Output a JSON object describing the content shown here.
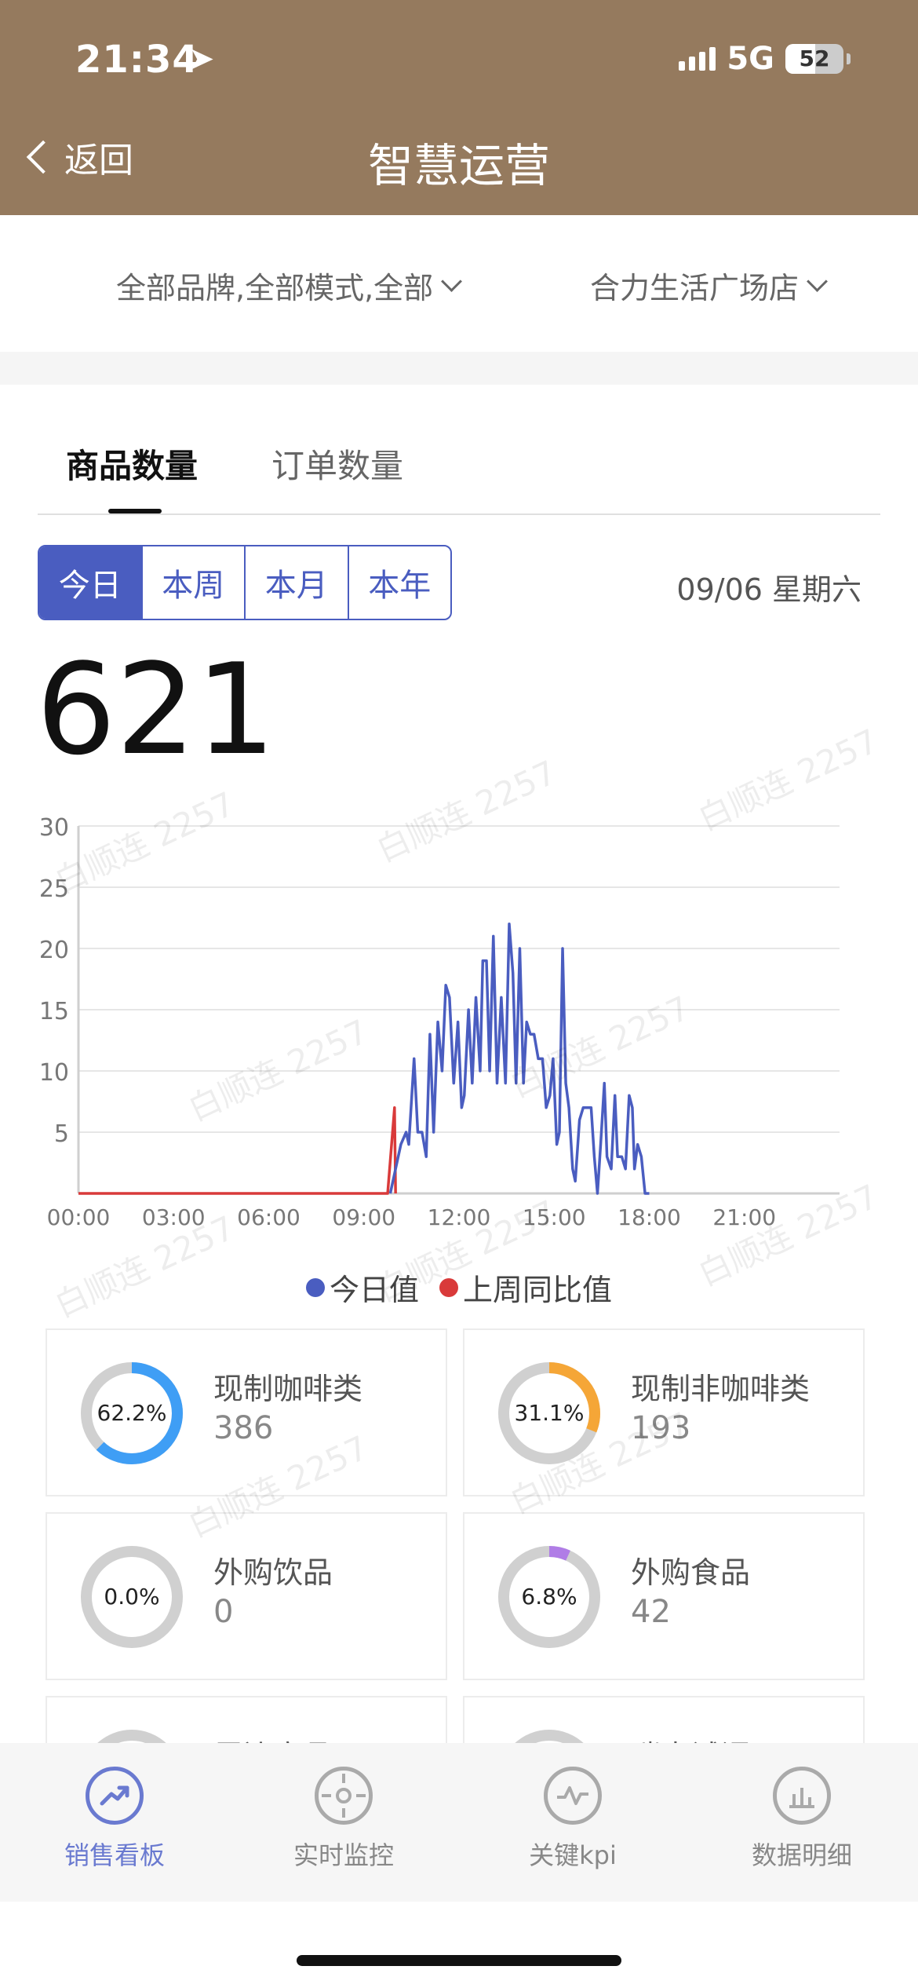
{
  "status": {
    "time": "21:34",
    "network": "5G",
    "battery": "52",
    "battery_level": 0.52
  },
  "header": {
    "back_label": "返回",
    "title": "智慧运营"
  },
  "filters": {
    "brand": "全部品牌,全部模式,全部",
    "store": "合力生活广场店"
  },
  "tabs": [
    {
      "label": "商品数量",
      "active": true
    },
    {
      "label": "订单数量",
      "active": false
    }
  ],
  "periods": [
    {
      "label": "今日",
      "active": true
    },
    {
      "label": "本周"
    },
    {
      "label": "本月"
    },
    {
      "label": "本年"
    }
  ],
  "date": "09/06 星期六",
  "total": "621",
  "chart_data": {
    "type": "line",
    "ylim": [
      0,
      30
    ],
    "yticks": [
      5,
      10,
      15,
      20,
      25,
      30
    ],
    "xlim": [
      0,
      1440
    ],
    "xticks": [
      "00:00",
      "03:00",
      "06:00",
      "09:00",
      "12:00",
      "15:00",
      "18:00",
      "21:00"
    ],
    "grid": true,
    "legend_position": "bottom",
    "series": [
      {
        "name": "今日值",
        "color": "#4a5dc0",
        "points": [
          [
            590,
            0
          ],
          [
            600,
            2
          ],
          [
            610,
            4
          ],
          [
            620,
            5
          ],
          [
            625,
            4
          ],
          [
            635,
            11
          ],
          [
            642,
            5
          ],
          [
            650,
            5
          ],
          [
            658,
            3
          ],
          [
            665,
            13
          ],
          [
            672,
            5
          ],
          [
            680,
            14
          ],
          [
            688,
            10
          ],
          [
            695,
            17
          ],
          [
            702,
            16
          ],
          [
            710,
            9
          ],
          [
            718,
            14
          ],
          [
            725,
            7
          ],
          [
            730,
            8
          ],
          [
            738,
            15
          ],
          [
            745,
            9
          ],
          [
            752,
            16
          ],
          [
            760,
            10
          ],
          [
            765,
            19
          ],
          [
            772,
            19
          ],
          [
            778,
            10
          ],
          [
            785,
            21
          ],
          [
            792,
            9
          ],
          [
            800,
            16
          ],
          [
            808,
            9
          ],
          [
            815,
            22
          ],
          [
            822,
            18
          ],
          [
            828,
            9
          ],
          [
            835,
            20
          ],
          [
            842,
            9
          ],
          [
            848,
            14
          ],
          [
            855,
            13
          ],
          [
            862,
            13
          ],
          [
            870,
            11
          ],
          [
            878,
            11
          ],
          [
            885,
            7
          ],
          [
            892,
            8
          ],
          [
            898,
            11
          ],
          [
            905,
            4
          ],
          [
            910,
            5
          ],
          [
            916,
            20
          ],
          [
            922,
            9
          ],
          [
            928,
            7
          ],
          [
            935,
            2
          ],
          [
            940,
            1
          ],
          [
            948,
            6
          ],
          [
            955,
            7
          ],
          [
            962,
            7
          ],
          [
            970,
            7
          ],
          [
            976,
            3
          ],
          [
            982,
            0
          ],
          [
            988,
            4
          ],
          [
            995,
            9
          ],
          [
            1000,
            3
          ],
          [
            1008,
            2
          ],
          [
            1015,
            8
          ],
          [
            1020,
            3
          ],
          [
            1028,
            3
          ],
          [
            1035,
            2
          ],
          [
            1042,
            8
          ],
          [
            1048,
            7
          ],
          [
            1052,
            2
          ],
          [
            1058,
            4
          ],
          [
            1065,
            3
          ],
          [
            1072,
            0
          ],
          [
            1080,
            0
          ]
        ]
      },
      {
        "name": "上周同比值",
        "color": "#d93a3a",
        "points": [
          [
            0,
            0
          ],
          [
            585,
            0
          ],
          [
            598,
            7
          ],
          [
            600,
            0
          ]
        ]
      }
    ]
  },
  "categories": [
    {
      "name": "现制咖啡类",
      "value": "386",
      "percent": "62.2%",
      "ratio": 0.622,
      "color": "#3f9ef5"
    },
    {
      "name": "现制非咖啡类",
      "value": "193",
      "percent": "31.1%",
      "ratio": 0.311,
      "color": "#f5a637"
    },
    {
      "name": "外购饮品",
      "value": "0",
      "percent": "0.0%",
      "ratio": 0.0,
      "color": "#aaaaaa"
    },
    {
      "name": "外购食品",
      "value": "42",
      "percent": "6.8%",
      "ratio": 0.068,
      "color": "#b07de6"
    },
    {
      "name": "周边商品"
    },
    {
      "name": "瑞幸试调"
    }
  ],
  "nav": [
    {
      "label": "销售看板",
      "active": true
    },
    {
      "label": "实时监控"
    },
    {
      "label": "关键kpi"
    },
    {
      "label": "数据明细"
    }
  ],
  "watermark": "白顺连 2257"
}
